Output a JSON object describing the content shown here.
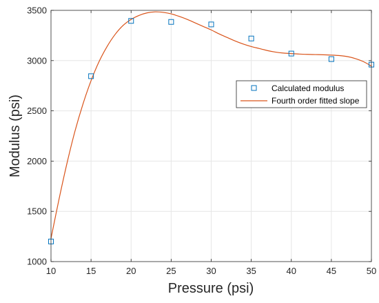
{
  "chart_data": {
    "type": "scatter",
    "xlabel": "Pressure (psi)",
    "ylabel": "Modulus (psi)",
    "xlim": [
      10,
      50
    ],
    "ylim": [
      1000,
      3500
    ],
    "xticks": [
      "10",
      "15",
      "20",
      "25",
      "30",
      "35",
      "40",
      "45",
      "50"
    ],
    "yticks": [
      "1000",
      "1500",
      "2000",
      "2500",
      "3000",
      "3500"
    ],
    "grid": true,
    "legend_position": "right",
    "series": [
      {
        "name": "Calculated modulus",
        "type": "scatter",
        "marker": "square",
        "color": "#0072BD",
        "x": [
          10,
          15,
          20,
          25,
          30,
          35,
          40,
          45,
          50
        ],
        "y": [
          1200,
          2845,
          3395,
          3385,
          3360,
          3220,
          3070,
          3015,
          2960
        ]
      },
      {
        "name": "Fourth order fitted slope",
        "type": "line",
        "color": "#D95319",
        "x": [
          10,
          11,
          12,
          13,
          14,
          15,
          16,
          17,
          18,
          19,
          20,
          21,
          22,
          23,
          24,
          25,
          26,
          27,
          28,
          29,
          30,
          31,
          32,
          33,
          34,
          35,
          36,
          37,
          38,
          39,
          40,
          41,
          42,
          43,
          44,
          45,
          46,
          47,
          48,
          49,
          50
        ],
        "y": [
          1230,
          1620,
          1980,
          2300,
          2570,
          2800,
          2990,
          3140,
          3260,
          3350,
          3410,
          3450,
          3475,
          3485,
          3480,
          3465,
          3440,
          3410,
          3375,
          3340,
          3305,
          3265,
          3230,
          3195,
          3165,
          3140,
          3120,
          3100,
          3085,
          3075,
          3070,
          3065,
          3062,
          3060,
          3058,
          3055,
          3050,
          3040,
          3020,
          2990,
          2945
        ]
      }
    ]
  }
}
